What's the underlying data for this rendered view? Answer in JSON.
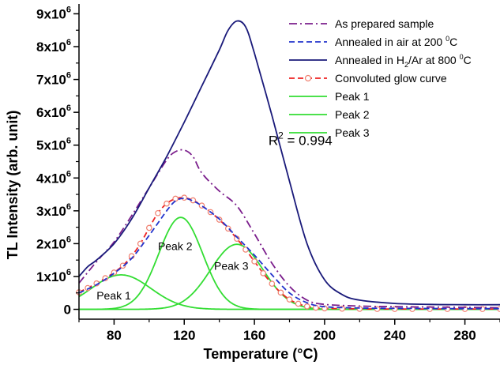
{
  "chart_data": {
    "type": "line",
    "xlabel": "Temperature (°C)",
    "ylabel": "TL Intensity (arb. unit)",
    "xlim": [
      60,
      300
    ],
    "ylim": [
      -300000,
      9300000
    ],
    "x_ticks": [
      80,
      120,
      160,
      200,
      240,
      280
    ],
    "x_tick_labels": [
      "80",
      "120",
      "160",
      "200",
      "240",
      "280"
    ],
    "y_ticks": [
      0,
      1000000,
      2000000,
      3000000,
      4000000,
      5000000,
      6000000,
      7000000,
      8000000,
      9000000
    ],
    "y_tick_labels": [
      {
        "mant": "0",
        "exp": ""
      },
      {
        "mant": "1x10",
        "exp": "6"
      },
      {
        "mant": "2x10",
        "exp": "6"
      },
      {
        "mant": "3x10",
        "exp": "6"
      },
      {
        "mant": "4x10",
        "exp": "6"
      },
      {
        "mant": "5x10",
        "exp": "6"
      },
      {
        "mant": "6x10",
        "exp": "6"
      },
      {
        "mant": "7x10",
        "exp": "6"
      },
      {
        "mant": "8x10",
        "exp": "6"
      },
      {
        "mant": "9x10",
        "exp": "6"
      }
    ],
    "legend_position": "top-right",
    "grid": false,
    "series": [
      {
        "name": "As prepared sample",
        "legend": {
          "text": "As prepared sample"
        },
        "color": "#7B1E8C",
        "style": "dashdot",
        "x": [
          60,
          70,
          80,
          90,
          100,
          110,
          115,
          120,
          125,
          130,
          140,
          150,
          160,
          170,
          180,
          190,
          200,
          220,
          240,
          260,
          280,
          300
        ],
        "y": [
          800000,
          1450000,
          2050000,
          2850000,
          3700000,
          4550000,
          4800000,
          4850000,
          4650000,
          4150000,
          3600000,
          3150000,
          2300000,
          1400000,
          700000,
          280000,
          150000,
          100000,
          80000,
          70000,
          60000,
          50000
        ]
      },
      {
        "name": "Annealed in air at 200 °C",
        "legend": {
          "text": "Annealed in air at 200 ",
          "sup": "0",
          "text2": "C"
        },
        "color": "#2233CC",
        "style": "dashed",
        "x": [
          60,
          70,
          80,
          90,
          100,
          110,
          115,
          120,
          125,
          130,
          140,
          150,
          160,
          170,
          180,
          190,
          200,
          220,
          240,
          260,
          280,
          300
        ],
        "y": [
          500000,
          750000,
          1100000,
          1550000,
          2250000,
          3000000,
          3300000,
          3380000,
          3300000,
          3150000,
          2750000,
          2200000,
          1650000,
          1050000,
          500000,
          200000,
          80000,
          40000,
          30000,
          25000,
          20000,
          20000
        ]
      },
      {
        "name": "Annealed in H2/Ar at 800 °C",
        "legend": {
          "text": "Annealed in H",
          "sub": "2",
          "text2": "/Ar at 800 ",
          "sup": "0",
          "text3": "C"
        },
        "color": "#1A1A7A",
        "style": "solid",
        "x": [
          60,
          65,
          70,
          80,
          90,
          100,
          110,
          120,
          130,
          140,
          145,
          150,
          155,
          160,
          170,
          180,
          190,
          200,
          210,
          220,
          240,
          260,
          280,
          300
        ],
        "y": [
          1000000,
          1300000,
          1500000,
          2000000,
          2750000,
          3700000,
          4650000,
          5700000,
          6800000,
          7900000,
          8500000,
          8780000,
          8600000,
          7800000,
          5900000,
          3900000,
          2000000,
          900000,
          450000,
          280000,
          180000,
          150000,
          140000,
          140000
        ]
      },
      {
        "name": "Convoluted glow curve",
        "legend": {
          "text": "Convoluted glow curve"
        },
        "color": "#EE2222",
        "style": "dashed-circle",
        "x": [
          60,
          65,
          70,
          75,
          80,
          85,
          90,
          95,
          100,
          105,
          110,
          115,
          120,
          125,
          130,
          135,
          140,
          145,
          150,
          155,
          160,
          165,
          170,
          175,
          180,
          185,
          190,
          195,
          200,
          210,
          220,
          230,
          240,
          250,
          260,
          270,
          280,
          290,
          300
        ],
        "y": [
          520000,
          650000,
          790000,
          950000,
          1120000,
          1330000,
          1620000,
          2000000,
          2480000,
          2930000,
          3220000,
          3370000,
          3400000,
          3320000,
          3160000,
          2960000,
          2730000,
          2460000,
          2150000,
          1820000,
          1460000,
          1100000,
          780000,
          510000,
          300000,
          170000,
          90000,
          50000,
          30000,
          20000,
          15000,
          10000,
          10000,
          10000,
          10000,
          10000,
          10000,
          10000,
          10000
        ]
      },
      {
        "name": "Peak 1",
        "legend": {
          "text": "Peak 1"
        },
        "color": "#33DD33",
        "style": "solid",
        "gauss": {
          "center": 84,
          "amp": 1050000,
          "sigma": 17
        },
        "xrange": [
          60,
          300
        ]
      },
      {
        "name": "Peak 2",
        "legend": {
          "text": "Peak 2"
        },
        "color": "#33DD33",
        "style": "solid",
        "gauss": {
          "center": 118,
          "amp": 2800000,
          "sigma": 12.5
        },
        "xrange": [
          60,
          300
        ]
      },
      {
        "name": "Peak 3",
        "legend": {
          "text": "Peak 3"
        },
        "color": "#33DD33",
        "style": "solid",
        "gauss": {
          "center": 150,
          "amp": 1980000,
          "sigma": 15
        },
        "xrange": [
          60,
          300
        ]
      }
    ],
    "annotations": [
      {
        "text": "Peak 1",
        "x": 70,
        "y": 300000
      },
      {
        "text": "Peak 2",
        "x": 105,
        "y": 1800000
      },
      {
        "text": "Peak 3",
        "x": 137,
        "y": 1200000
      }
    ],
    "r2": {
      "label": "R",
      "sup": "2",
      "value": " = 0.994",
      "x": 168,
      "y": 5000000
    }
  }
}
